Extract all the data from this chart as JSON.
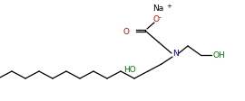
{
  "bg_color": "#ffffff",
  "line_color": "#000000",
  "na_color": "#000000",
  "o_color": "#cc0000",
  "n_color": "#0000aa",
  "ho_color": "#007700",
  "line_width": 0.9,
  "fig_width": 2.7,
  "fig_height": 1.13,
  "dpi": 100,
  "na_text": "Na",
  "plus_text": "+",
  "o_minus_text": "O",
  "minus_text": "-",
  "o_carb_text": "O",
  "n_text": "N",
  "ho_text": "HO",
  "oh_text": "OH"
}
